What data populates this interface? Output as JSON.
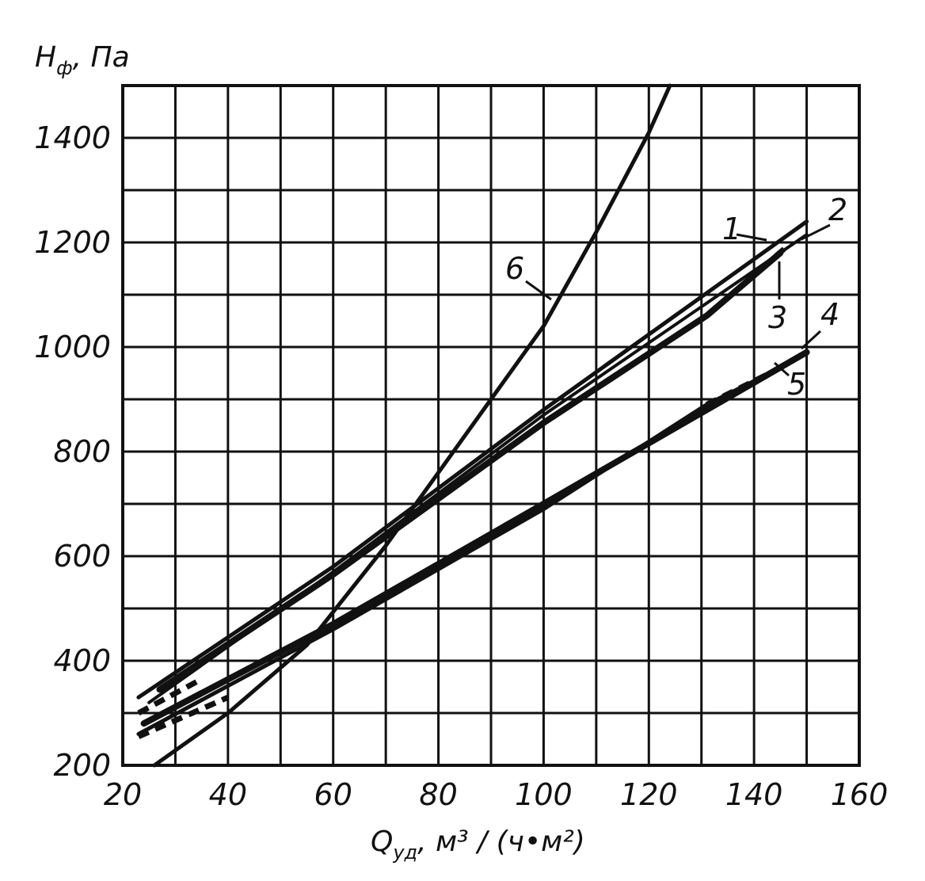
{
  "chart_data": {
    "type": "line",
    "ylabel": {
      "main": "H",
      "sub": "ф",
      "unit": ", Па"
    },
    "xlabel": {
      "main": "Q",
      "sub": "уд",
      "unit": ", м³ / (ч•м²)"
    },
    "xlim": [
      20,
      160
    ],
    "ylim": [
      200,
      1500
    ],
    "grid": true,
    "x_ticks": [
      "20",
      "40",
      "60",
      "80",
      "100",
      "120",
      "140",
      "160"
    ],
    "y_ticks": [
      "200",
      "400",
      "600",
      "800",
      "1000",
      "1200",
      "1400"
    ],
    "series": [
      {
        "name": "1",
        "points": [
          [
            23,
            330
          ],
          [
            60,
            580
          ],
          [
            100,
            880
          ],
          [
            150,
            1240
          ]
        ]
      },
      {
        "name": "2",
        "points": [
          [
            25,
            320
          ],
          [
            60,
            570
          ],
          [
            100,
            870
          ],
          [
            150,
            1215
          ]
        ]
      },
      {
        "name": "3",
        "points": [
          [
            27,
            345
          ],
          [
            60,
            565
          ],
          [
            100,
            855
          ],
          [
            131,
            1060
          ],
          [
            145,
            1180
          ]
        ]
      },
      {
        "name": "4",
        "points": [
          [
            24,
            280
          ],
          [
            60,
            470
          ],
          [
            100,
            700
          ],
          [
            150,
            990
          ]
        ]
      },
      {
        "name": "5",
        "points": [
          [
            23,
            260
          ],
          [
            60,
            460
          ],
          [
            100,
            690
          ],
          [
            131,
            890
          ],
          [
            146,
            965
          ]
        ]
      },
      {
        "name": "6",
        "points": [
          [
            26,
            200
          ],
          [
            40,
            300
          ],
          [
            55,
            430
          ],
          [
            70,
            620
          ],
          [
            80,
            760
          ],
          [
            90,
            900
          ],
          [
            100,
            1040
          ],
          [
            110,
            1220
          ],
          [
            120,
            1410
          ],
          [
            124,
            1500
          ]
        ]
      }
    ],
    "curve_labels": [
      "1",
      "2",
      "3",
      "4",
      "5",
      "6"
    ]
  }
}
